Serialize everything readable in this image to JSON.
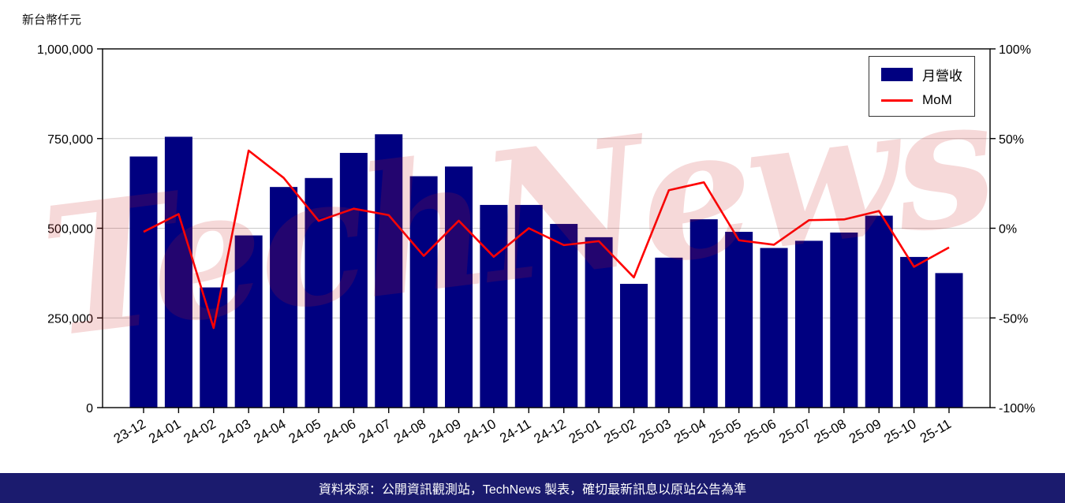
{
  "chart": {
    "unit_label": "新台幣仟元",
    "watermark": "TechNews",
    "footer": "資料來源：公開資訊觀測站，TechNews 製表，確切最新訊息以原站公告為準",
    "colors": {
      "bar": "#000080",
      "line": "#ff0000",
      "grid": "#c9c9c9",
      "axis": "#000000",
      "watermark": "#cc2222",
      "footer_bg": "#1b1b6e",
      "footer_text": "#ffffff"
    }
  },
  "chart_data": {
    "type": "bar",
    "title": "",
    "xlabel": "",
    "ylabel": "新台幣仟元",
    "grid": true,
    "legend_position": "top-right",
    "categories": [
      "23-12",
      "24-01",
      "24-02",
      "24-03",
      "24-04",
      "24-05",
      "24-06",
      "24-07",
      "24-08",
      "24-09",
      "24-10",
      "24-11",
      "24-12",
      "25-01",
      "25-02",
      "25-03",
      "25-04",
      "25-05",
      "25-06",
      "25-07",
      "25-08",
      "25-09",
      "25-10",
      "25-11"
    ],
    "series": [
      {
        "name": "月營收",
        "type": "bar",
        "axis": "left",
        "unit": "新台幣仟元",
        "values": [
          700000,
          755000,
          335000,
          480000,
          615000,
          640000,
          710000,
          762000,
          645000,
          672000,
          565000,
          565000,
          512000,
          475000,
          345000,
          418000,
          525000,
          490000,
          445000,
          465000,
          488000,
          535000,
          420000,
          375000
        ]
      },
      {
        "name": "MoM",
        "type": "line",
        "axis": "right",
        "unit": "%",
        "values": [
          -2.0,
          7.9,
          -55.6,
          43.3,
          28.1,
          4.1,
          10.9,
          7.3,
          -15.4,
          4.2,
          -15.9,
          0.0,
          -9.4,
          -7.2,
          -27.4,
          21.2,
          25.6,
          -6.7,
          -9.2,
          4.5,
          4.9,
          9.6,
          -21.5,
          -10.7
        ]
      }
    ],
    "left_axis": {
      "range": [
        0,
        1000000
      ],
      "ticks": [
        0,
        250000,
        500000,
        750000,
        1000000
      ]
    },
    "right_axis": {
      "range": [
        -100,
        100
      ],
      "ticks": [
        -100,
        -50,
        0,
        50,
        100
      ],
      "suffix": "%"
    }
  }
}
